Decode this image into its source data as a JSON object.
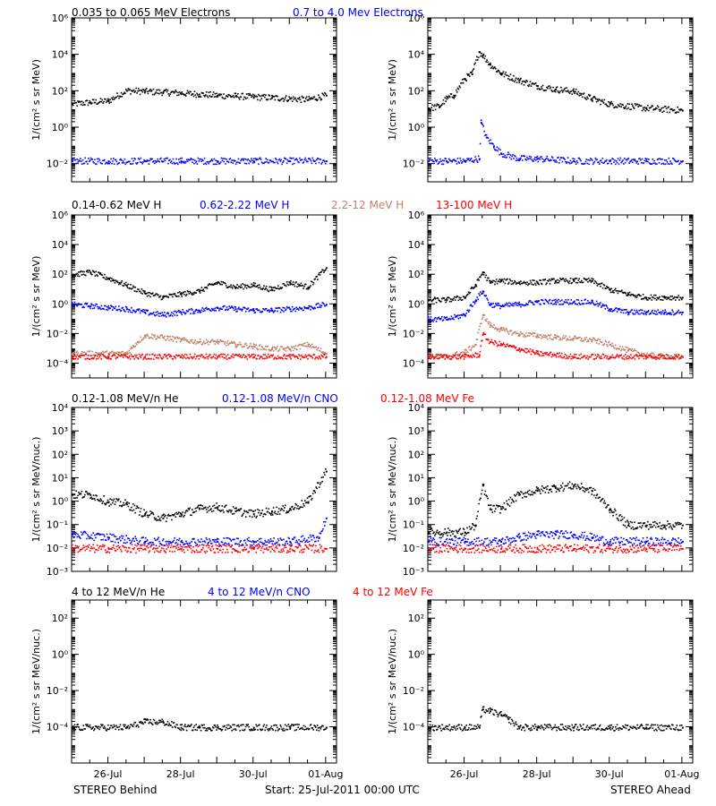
{
  "footer": {
    "left": "STEREO Behind",
    "center": "Start: 25-Jul-2011 00:00 UTC",
    "right": "STEREO Ahead"
  },
  "colors": {
    "black": "#000000",
    "blue": "#0000ff",
    "tan": "#c0806a",
    "red": "#ff0000"
  },
  "chart_data": [
    {
      "type": "scatter",
      "row_title": [
        {
          "text": "0.035 to 0.065 MeV Electrons",
          "color": "#000000"
        },
        {
          "text": "0.7 to 4.0 Mev Electrons",
          "color": "#0000ff"
        }
      ],
      "ylabel": "1/(cm² s sr MeV)",
      "yscale": "log",
      "ylim": [
        0.001,
        1000000
      ],
      "yticks": [
        {
          "v": 0.01,
          "label": "10⁻²"
        },
        {
          "v": 1,
          "label": "10⁰"
        },
        {
          "v": 100,
          "label": "10²"
        },
        {
          "v": 10000,
          "label": "10⁴"
        },
        {
          "v": 1000000,
          "label": "10⁶"
        }
      ],
      "panels": [
        {
          "spacecraft": "STEREO Behind",
          "series": [
            {
              "color": "#000000",
              "x": [
                0,
                0.5,
                1,
                1.5,
                2,
                2.5,
                3,
                3.5,
                4,
                4.5,
                5,
                5.5,
                6,
                6.5,
                7
              ],
              "y": [
                20,
                25,
                30,
                110,
                100,
                90,
                80,
                70,
                60,
                55,
                50,
                45,
                40,
                35,
                60
              ]
            },
            {
              "color": "#0000ff",
              "x": [
                0,
                1,
                2,
                3,
                4,
                5,
                6,
                7
              ],
              "y": [
                0.015,
                0.015,
                0.015,
                0.015,
                0.015,
                0.015,
                0.015,
                0.015
              ]
            }
          ]
        },
        {
          "spacecraft": "STEREO Ahead",
          "series": [
            {
              "color": "#000000",
              "x": [
                0,
                0.3,
                0.5,
                0.7,
                1,
                1.2,
                1.4,
                1.5,
                1.7,
                2,
                2.5,
                3,
                3.5,
                4,
                4.5,
                5,
                6,
                7
              ],
              "y": [
                12,
                15,
                40,
                60,
                500,
                900,
                15000,
                10000,
                3000,
                1000,
                400,
                200,
                130,
                100,
                40,
                20,
                12,
                9
              ]
            },
            {
              "color": "#0000ff",
              "x": [
                0,
                0.5,
                1,
                1.4,
                1.45,
                1.6,
                1.8,
                2,
                2.5,
                3,
                4,
                5,
                6,
                7
              ],
              "y": [
                0.015,
                0.015,
                0.015,
                0.02,
                2,
                0.3,
                0.1,
                0.04,
                0.02,
                0.02,
                0.015,
                0.015,
                0.015,
                0.015
              ]
            }
          ]
        }
      ]
    },
    {
      "type": "scatter",
      "row_title": [
        {
          "text": "0.14-0.62 MeV H",
          "color": "#000000"
        },
        {
          "text": "0.62-2.22 MeV H",
          "color": "#0000ff"
        },
        {
          "text": "2.2-12 MeV H",
          "color": "#c0806a"
        },
        {
          "text": "13-100 MeV H",
          "color": "#ff0000"
        }
      ],
      "ylabel": "1/(cm² s sr MeV)",
      "yscale": "log",
      "ylim": [
        1e-05,
        1000000
      ],
      "yticks": [
        {
          "v": 0.0001,
          "label": "10⁻⁴"
        },
        {
          "v": 0.01,
          "label": "10⁻²"
        },
        {
          "v": 1,
          "label": "10⁰"
        },
        {
          "v": 100,
          "label": "10²"
        },
        {
          "v": 10000,
          "label": "10⁴"
        },
        {
          "v": 1000000,
          "label": "10⁶"
        }
      ],
      "panels": [
        {
          "spacecraft": "STEREO Behind",
          "series": [
            {
              "color": "#000000",
              "x": [
                0,
                0.5,
                1,
                1.5,
                2,
                2.5,
                3,
                3.5,
                4,
                4.5,
                5,
                5.5,
                6,
                6.5,
                7
              ],
              "y": [
                100,
                150,
                60,
                20,
                6,
                3,
                5,
                8,
                30,
                15,
                20,
                10,
                30,
                15,
                300
              ]
            },
            {
              "color": "#0000ff",
              "x": [
                0,
                0.5,
                1,
                1.5,
                2,
                2.5,
                3,
                3.5,
                4,
                4.5,
                5,
                5.5,
                6,
                6.5,
                7
              ],
              "y": [
                1,
                0.8,
                0.6,
                0.5,
                0.3,
                0.2,
                0.3,
                0.4,
                0.6,
                0.5,
                0.4,
                0.4,
                0.5,
                0.6,
                1
              ]
            },
            {
              "color": "#c0806a",
              "x": [
                0,
                1,
                1.5,
                1.8,
                2,
                2.5,
                3,
                3.5,
                4,
                4.5,
                5,
                5.5,
                6,
                6.5,
                7
              ],
              "y": [
                0.0005,
                0.0005,
                0.0005,
                0.003,
                0.008,
                0.006,
                0.004,
                0.003,
                0.003,
                0.002,
                0.0015,
                0.001,
                0.001,
                0.002,
                0.0005
              ]
            },
            {
              "color": "#ff0000",
              "x": [
                0,
                1,
                2,
                3,
                4,
                5,
                6,
                7
              ],
              "y": [
                0.0003,
                0.0003,
                0.0003,
                0.0003,
                0.0003,
                0.0003,
                0.0003,
                0.0003
              ]
            }
          ]
        },
        {
          "spacecraft": "STEREO Ahead",
          "series": [
            {
              "color": "#000000",
              "x": [
                0,
                0.5,
                1,
                1.3,
                1.5,
                1.7,
                2,
                2.5,
                3,
                3.5,
                4,
                4.5,
                5,
                5.5,
                6,
                6.5,
                7
              ],
              "y": [
                2,
                2,
                3,
                20,
                150,
                30,
                40,
                30,
                30,
                40,
                40,
                40,
                10,
                5,
                3,
                3,
                3
              ]
            },
            {
              "color": "#0000ff",
              "x": [
                0,
                0.5,
                1,
                1.3,
                1.5,
                1.7,
                2,
                2.5,
                3,
                3.5,
                4,
                4.5,
                5,
                5.5,
                6,
                6.5,
                7
              ],
              "y": [
                0.1,
                0.1,
                0.2,
                2,
                8,
                1,
                0.8,
                1,
                1.5,
                1.5,
                1.5,
                1.5,
                0.5,
                0.3,
                0.3,
                0.3,
                0.3
              ]
            },
            {
              "color": "#c0806a",
              "x": [
                0,
                0.5,
                1,
                1.3,
                1.5,
                1.7,
                2,
                2.5,
                3,
                3.5,
                4,
                4.5,
                5,
                5.5,
                6,
                6.5,
                7
              ],
              "y": [
                0.0003,
                0.0003,
                0.0006,
                0.002,
                0.2,
                0.04,
                0.02,
                0.01,
                0.008,
                0.006,
                0.005,
                0.004,
                0.002,
                0.0008,
                0.0004,
                0.0003,
                0.0003
              ]
            },
            {
              "color": "#ff0000",
              "x": [
                0,
                0.5,
                1,
                1.4,
                1.5,
                1.7,
                2,
                2.5,
                3,
                3.5,
                4,
                5,
                6,
                7
              ],
              "y": [
                0.0003,
                0.0003,
                0.0003,
                0.0004,
                0.01,
                0.003,
                0.002,
                0.001,
                0.0005,
                0.0004,
                0.0003,
                0.0003,
                0.0003,
                0.0003
              ]
            }
          ]
        }
      ]
    },
    {
      "type": "scatter",
      "row_title": [
        {
          "text": "0.12-1.08 MeV/n He",
          "color": "#000000"
        },
        {
          "text": "0.12-1.08 MeV/n CNO",
          "color": "#0000ff"
        },
        {
          "text": "0.12-1.08 MeV Fe",
          "color": "#ff0000"
        }
      ],
      "ylabel": "1/(cm² s sr MeV/nuc.)",
      "yscale": "log",
      "ylim": [
        0.001,
        10000
      ],
      "yticks": [
        {
          "v": 0.001,
          "label": "10⁻³"
        },
        {
          "v": 0.01,
          "label": "10⁻²"
        },
        {
          "v": 0.1,
          "label": "10⁻¹"
        },
        {
          "v": 1,
          "label": "10⁰"
        },
        {
          "v": 10,
          "label": "10¹"
        },
        {
          "v": 100,
          "label": "10²"
        },
        {
          "v": 1000,
          "label": "10³"
        },
        {
          "v": 10000,
          "label": "10⁴"
        }
      ],
      "panels": [
        {
          "spacecraft": "STEREO Behind",
          "series": [
            {
              "color": "#000000",
              "x": [
                0,
                0.5,
                1,
                1.5,
                2,
                2.5,
                3,
                3.5,
                4,
                4.5,
                5,
                5.5,
                6,
                6.5,
                7
              ],
              "y": [
                2,
                2,
                1,
                0.8,
                0.3,
                0.2,
                0.3,
                0.5,
                0.6,
                0.4,
                0.3,
                0.4,
                0.5,
                1,
                20
              ]
            },
            {
              "color": "#0000ff",
              "x": [
                0,
                1,
                2,
                3,
                4,
                5,
                6,
                6.8,
                7
              ],
              "y": [
                0.04,
                0.03,
                0.02,
                0.02,
                0.02,
                0.02,
                0.02,
                0.03,
                0.2
              ]
            },
            {
              "color": "#ff0000",
              "x": [
                0,
                1,
                2,
                3,
                4,
                5,
                6,
                7
              ],
              "y": [
                0.01,
                0.01,
                0.01,
                0.01,
                0.01,
                0.01,
                0.01,
                0.01
              ]
            }
          ]
        },
        {
          "spacecraft": "STEREO Ahead",
          "series": [
            {
              "color": "#000000",
              "x": [
                0,
                0.5,
                1,
                1.3,
                1.5,
                1.7,
                2,
                2.5,
                3,
                3.5,
                4,
                4.5,
                5,
                5.5,
                6,
                6.5,
                7
              ],
              "y": [
                0.05,
                0.05,
                0.05,
                0.1,
                5,
                0.5,
                0.5,
                2,
                3,
                4,
                5,
                3,
                0.5,
                0.1,
                0.1,
                0.1,
                0.1
              ]
            },
            {
              "color": "#0000ff",
              "x": [
                0,
                1,
                2,
                2.5,
                3,
                3.5,
                4,
                4.5,
                5,
                6,
                7
              ],
              "y": [
                0.02,
                0.02,
                0.02,
                0.03,
                0.04,
                0.04,
                0.04,
                0.03,
                0.02,
                0.02,
                0.02
              ]
            },
            {
              "color": "#ff0000",
              "x": [
                0,
                1,
                2,
                3,
                4,
                5,
                6,
                7
              ],
              "y": [
                0.01,
                0.01,
                0.01,
                0.01,
                0.01,
                0.01,
                0.01,
                0.01
              ]
            }
          ]
        }
      ]
    },
    {
      "type": "scatter",
      "row_title": [
        {
          "text": "4 to 12 MeV/n He",
          "color": "#000000"
        },
        {
          "text": "4 to 12 MeV/n CNO",
          "color": "#0000ff"
        },
        {
          "text": "4 to 12 MeV Fe",
          "color": "#ff0000"
        }
      ],
      "ylabel": "1/(cm² s sr MeV/nuc.)",
      "yscale": "log",
      "ylim": [
        1e-06,
        1000
      ],
      "yticks": [
        {
          "v": 0.0001,
          "label": "10⁻⁴"
        },
        {
          "v": 0.01,
          "label": "10⁻²"
        },
        {
          "v": 1,
          "label": "10⁰"
        },
        {
          "v": 100,
          "label": "10²"
        }
      ],
      "xticks": [
        "26-Jul",
        "28-Jul",
        "30-Jul",
        "01-Aug"
      ],
      "xtick_values": [
        1,
        3,
        5,
        7
      ],
      "xlim": [
        0,
        7.3
      ],
      "panels": [
        {
          "spacecraft": "STEREO Behind",
          "series": [
            {
              "color": "#000000",
              "x": [
                0,
                1.5,
                2,
                2.5,
                3,
                3.5,
                4,
                5,
                6,
                7
              ],
              "y": [
                0.0001,
                0.0001,
                0.0002,
                0.0002,
                0.0001,
                0.0001,
                0.0001,
                0.0001,
                0.0001,
                0.0001
              ]
            }
          ]
        },
        {
          "spacecraft": "STEREO Ahead",
          "series": [
            {
              "color": "#000000",
              "x": [
                0,
                1,
                1.4,
                1.5,
                1.7,
                2,
                2.2,
                2.5,
                3,
                4,
                5,
                6,
                7
              ],
              "y": [
                0.0001,
                0.0001,
                0.0001,
                0.001,
                0.0008,
                0.0005,
                0.0003,
                0.0001,
                0.0001,
                0.0001,
                0.0001,
                0.0001,
                0.0001
              ]
            }
          ]
        }
      ]
    }
  ]
}
